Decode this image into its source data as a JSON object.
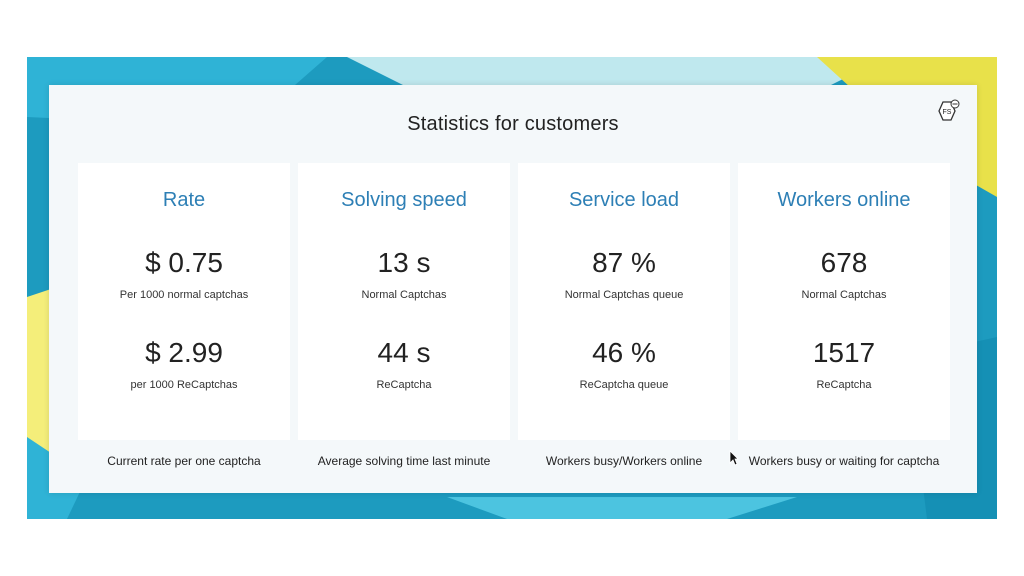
{
  "title": "Statistics for customers",
  "badge": "FS",
  "colors": {
    "frame_blue": "#1d9bbf",
    "light_blue": "#5fc7e0",
    "yellow": "#f4ee7a",
    "panel": "#f4f8fa",
    "accent_title": "#2d7fb5"
  },
  "cards": [
    {
      "title": "Rate",
      "value1": "$ 0.75",
      "caption1": "Per 1000 normal captchas",
      "value2": "$ 2.99",
      "caption2": "per 1000 ReCaptchas",
      "footer": "Current rate per one captcha"
    },
    {
      "title": "Solving speed",
      "value1": "13 s",
      "caption1": "Normal Captchas",
      "value2": "44 s",
      "caption2": "ReCaptcha",
      "footer": "Average solving time last minute"
    },
    {
      "title": "Service load",
      "value1": "87 %",
      "caption1": "Normal Captchas queue",
      "value2": "46 %",
      "caption2": "ReCaptcha queue",
      "footer": "Workers busy/Workers online"
    },
    {
      "title": "Workers online",
      "value1": "678",
      "caption1": "Normal Captchas",
      "value2": "1517",
      "caption2": "ReCaptcha",
      "footer": "Workers busy or waiting for captcha"
    }
  ]
}
